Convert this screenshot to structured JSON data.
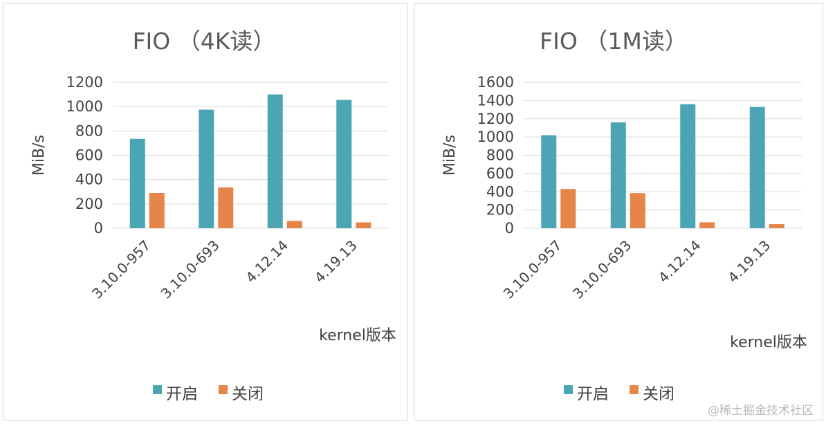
{
  "colors": {
    "open": "#4BA5B5",
    "closed": "#E58648"
  },
  "watermark": "@稀土掘金技术社区",
  "chart_data": [
    {
      "type": "bar",
      "title": "FIO （4K读）",
      "ylabel": "MiB/s",
      "xlabel": "kernel版本",
      "categories": [
        "3.10.0-957",
        "3.10.0-693",
        "4.12.14",
        "4.19.13"
      ],
      "ylim": [
        0,
        1200
      ],
      "yticks": [
        0,
        200,
        400,
        600,
        800,
        1000,
        1200
      ],
      "grid": true,
      "legend_position": "bottom",
      "series": [
        {
          "name": "开启",
          "values": [
            735,
            975,
            1100,
            1055
          ]
        },
        {
          "name": "关闭",
          "values": [
            290,
            335,
            60,
            48
          ]
        }
      ]
    },
    {
      "type": "bar",
      "title": "FIO （1M读）",
      "ylabel": "MiB/s",
      "xlabel": "kernel版本",
      "categories": [
        "3.10.0-957",
        "3.10.0-693",
        "4.12.14",
        "4.19.13"
      ],
      "ylim": [
        0,
        1600
      ],
      "yticks": [
        0,
        200,
        400,
        600,
        800,
        1000,
        1200,
        1400,
        1600
      ],
      "grid": true,
      "legend_position": "bottom",
      "series": [
        {
          "name": "开启",
          "values": [
            1020,
            1160,
            1360,
            1330
          ]
        },
        {
          "name": "关闭",
          "values": [
            430,
            385,
            65,
            45
          ]
        }
      ]
    }
  ]
}
